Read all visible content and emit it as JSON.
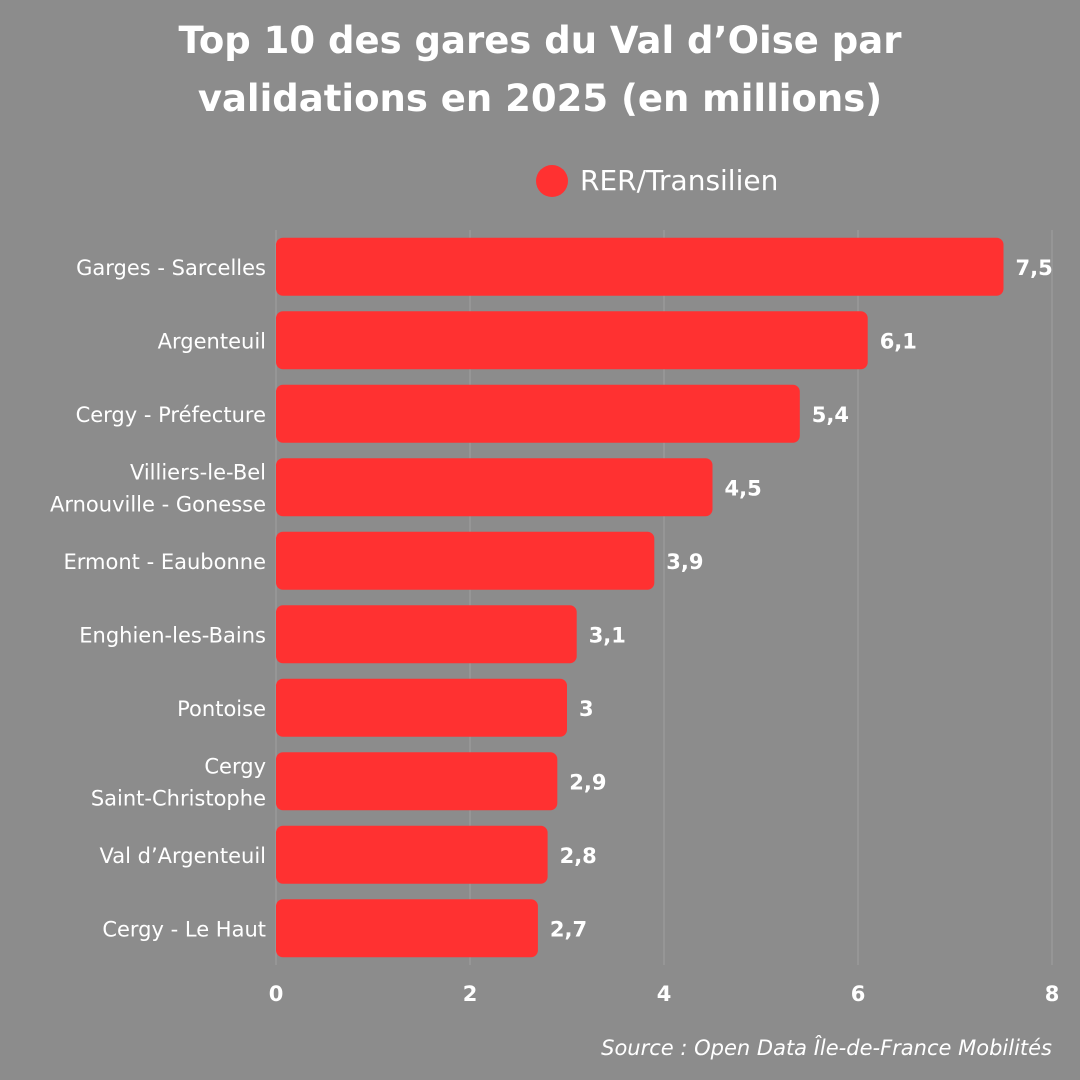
{
  "chart_data": {
    "type": "bar",
    "orientation": "horizontal",
    "title": "Top 10 des gares du Val d’Oise par validations en 2025 (en millions)",
    "title_lines": [
      "Top 10 des gares du Val d’Oise par",
      "validations en 2025 (en millions)"
    ],
    "categories": [
      [
        "Garges - Sarcelles"
      ],
      [
        "Argenteuil"
      ],
      [
        "Cergy - Préfecture"
      ],
      [
        "Villiers-le-Bel",
        "Arnouville - Gonesse"
      ],
      [
        "Ermont - Eaubonne"
      ],
      [
        "Enghien-les-Bains"
      ],
      [
        "Pontoise"
      ],
      [
        "Cergy",
        "Saint-Christophe"
      ],
      [
        "Val d’Argenteuil"
      ],
      [
        "Cergy - Le Haut"
      ]
    ],
    "series": [
      {
        "name": "RER/Transilien",
        "color": "#ff3131",
        "values": [
          7.5,
          6.1,
          5.4,
          4.5,
          3.9,
          3.1,
          3,
          2.9,
          2.8,
          2.7
        ],
        "value_labels": [
          "7,5",
          "6,1",
          "5,4",
          "4,5",
          "3,9",
          "3,1",
          "3",
          "2,9",
          "2,8",
          "2,7"
        ]
      }
    ],
    "xlim": [
      0,
      8
    ],
    "x_ticks": [
      0,
      2,
      4,
      6,
      8
    ],
    "grid": true,
    "legend_position": "top",
    "source": "Source : Open Data Île-de-France Mobilités"
  },
  "colors": {
    "background": "#8c8c8c",
    "bar": "#ff3131",
    "text": "#ffffff"
  }
}
